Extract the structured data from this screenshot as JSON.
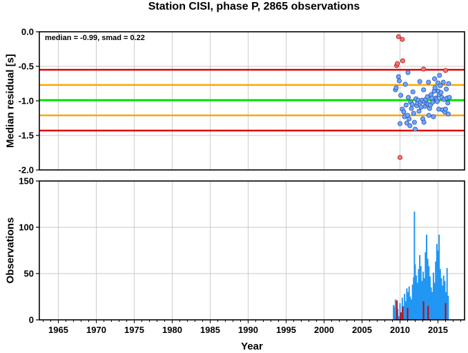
{
  "title": "Station CISI, phase P, 2865 observations",
  "xlabel": "Year",
  "x_ticks": [
    1965,
    1970,
    1975,
    1980,
    1985,
    1990,
    1995,
    2000,
    2005,
    2010,
    2015
  ],
  "xlim": [
    1962.5,
    2018.5
  ],
  "colors": {
    "median_line": "#00e000",
    "smad_band": "#ffa500",
    "outlier_band": "#e00000",
    "inlier_point": "#6fa8ff",
    "outlier_point": "#ff7070",
    "bar_main": "#2196f3",
    "bar_red": "#cc0000"
  },
  "chart_data": [
    {
      "type": "scatter",
      "ylabel": "Median residual [s]",
      "ylim": [
        -2.0,
        0.0
      ],
      "y_ticks": [
        "0.0",
        "-0.5",
        "-1.0",
        "-1.5",
        "-2.0"
      ],
      "y_tick_values": [
        0.0,
        -0.5,
        -1.0,
        -1.5,
        -2.0
      ],
      "annotation": "median = -0.99, smad = 0.22",
      "grid": true,
      "reference_lines": [
        {
          "kind": "median",
          "y": -0.99
        },
        {
          "kind": "smad_upper",
          "y": -0.77
        },
        {
          "kind": "smad_lower",
          "y": -1.21
        },
        {
          "kind": "outlier_upper",
          "y": -0.55
        },
        {
          "kind": "outlier_lower",
          "y": -1.43
        }
      ],
      "inliers": [
        [
          2009.4,
          -0.84
        ],
        [
          2009.5,
          -0.81
        ],
        [
          2009.8,
          -0.65
        ],
        [
          2009.9,
          -0.71
        ],
        [
          2010.0,
          -1.33
        ],
        [
          2010.1,
          -0.92
        ],
        [
          2010.3,
          -1.12
        ],
        [
          2010.5,
          -1.16
        ],
        [
          2010.6,
          -1.23
        ],
        [
          2010.7,
          -0.76
        ],
        [
          2010.8,
          -1.06
        ],
        [
          2010.9,
          -1.32
        ],
        [
          2011.0,
          -1.21
        ],
        [
          2011.05,
          -0.59
        ],
        [
          2011.1,
          -0.95
        ],
        [
          2011.2,
          -1.26
        ],
        [
          2011.3,
          -1.36
        ],
        [
          2011.4,
          -1.02
        ],
        [
          2011.5,
          -1.11
        ],
        [
          2011.6,
          -1.05
        ],
        [
          2011.7,
          -0.87
        ],
        [
          2011.8,
          -1.18
        ],
        [
          2011.9,
          -1.31
        ],
        [
          2012.0,
          -1.41
        ],
        [
          2012.1,
          -0.97
        ],
        [
          2012.2,
          -1.07
        ],
        [
          2012.3,
          -1.03
        ],
        [
          2012.4,
          -0.99
        ],
        [
          2012.5,
          -1.15
        ],
        [
          2012.6,
          -0.72
        ],
        [
          2012.7,
          -1.02
        ],
        [
          2012.8,
          -1.09
        ],
        [
          2012.9,
          -0.99
        ],
        [
          2013.0,
          -1.26
        ],
        [
          2013.1,
          -0.84
        ],
        [
          2013.15,
          -1.31
        ],
        [
          2013.2,
          -1.01
        ],
        [
          2013.3,
          -1.08
        ],
        [
          2013.4,
          -0.98
        ],
        [
          2013.5,
          -1.04
        ],
        [
          2013.6,
          -0.94
        ],
        [
          2013.7,
          -1.05
        ],
        [
          2013.75,
          -0.73
        ],
        [
          2013.8,
          -1.21
        ],
        [
          2013.9,
          -1.11
        ],
        [
          2014.0,
          -1.06
        ],
        [
          2014.1,
          -0.91
        ],
        [
          2014.2,
          -0.96
        ],
        [
          2014.3,
          -1.02
        ],
        [
          2014.4,
          -1.23
        ],
        [
          2014.5,
          -0.86
        ],
        [
          2014.55,
          -0.68
        ],
        [
          2014.6,
          -0.81
        ],
        [
          2014.7,
          -0.96
        ],
        [
          2014.8,
          -0.98
        ],
        [
          2014.9,
          -1.01
        ],
        [
          2015.0,
          -0.74
        ],
        [
          2015.05,
          -0.86
        ],
        [
          2015.1,
          -1.12
        ],
        [
          2015.15,
          -0.91
        ],
        [
          2015.2,
          -0.63
        ],
        [
          2015.3,
          -0.78
        ],
        [
          2015.4,
          -0.88
        ],
        [
          2015.5,
          -0.95
        ],
        [
          2015.6,
          -1.13
        ],
        [
          2015.7,
          -0.73
        ],
        [
          2015.8,
          -0.98
        ],
        [
          2015.9,
          -1.16
        ],
        [
          2016.0,
          -1.12
        ],
        [
          2016.1,
          -0.83
        ],
        [
          2016.2,
          -0.96
        ],
        [
          2016.3,
          -1.03
        ],
        [
          2016.35,
          -1.19
        ],
        [
          2016.4,
          -0.75
        ],
        [
          2016.5,
          -0.95
        ]
      ],
      "outliers": [
        [
          2009.55,
          -0.49
        ],
        [
          2009.65,
          -0.46
        ],
        [
          2009.8,
          -0.07
        ],
        [
          2010.0,
          -1.82
        ],
        [
          2010.3,
          -0.11
        ],
        [
          2010.35,
          -0.42
        ],
        [
          2013.1,
          -0.54
        ],
        [
          2016.0,
          -0.56
        ]
      ]
    },
    {
      "type": "bar",
      "ylabel": "Observations",
      "ylim": [
        0,
        150
      ],
      "y_ticks": [
        "0",
        "50",
        "100",
        "150"
      ],
      "y_tick_values": [
        0,
        50,
        100,
        150
      ],
      "grid": true,
      "series": [
        {
          "color_key": "bar_main",
          "x": [
            2009.15,
            2009.25,
            2009.4,
            2009.55,
            2009.7,
            2009.85,
            2010.0,
            2010.15,
            2010.3,
            2010.45,
            2010.6,
            2010.75,
            2010.9,
            2011.05,
            2011.2,
            2011.35,
            2011.5,
            2011.65,
            2011.8,
            2011.9,
            2012.0,
            2012.15,
            2012.3,
            2012.45,
            2012.6,
            2012.75,
            2012.9,
            2013.05,
            2013.2,
            2013.35,
            2013.5,
            2013.65,
            2013.8,
            2013.95,
            2014.1,
            2014.25,
            2014.4,
            2014.55,
            2014.7,
            2014.85,
            2015.0,
            2015.15,
            2015.3,
            2015.45,
            2015.6,
            2015.75,
            2015.9,
            2016.05,
            2016.2,
            2016.35
          ],
          "values": [
            16,
            14,
            22,
            10,
            12,
            4,
            18,
            8,
            24,
            15,
            28,
            20,
            34,
            30,
            36,
            25,
            22,
            38,
            46,
            117,
            60,
            48,
            40,
            55,
            70,
            58,
            42,
            52,
            45,
            73,
            92,
            66,
            58,
            47,
            35,
            30,
            51,
            40,
            63,
            82,
            75,
            92,
            55,
            45,
            37,
            48,
            42,
            30,
            56,
            26
          ]
        },
        {
          "color_key": "bar_red",
          "x": [
            2009.6,
            2010.1,
            2010.35,
            2011.0,
            2013.1,
            2013.7,
            2016.0
          ],
          "values": [
            21,
            8,
            14,
            13,
            20,
            15,
            18
          ]
        }
      ]
    }
  ]
}
